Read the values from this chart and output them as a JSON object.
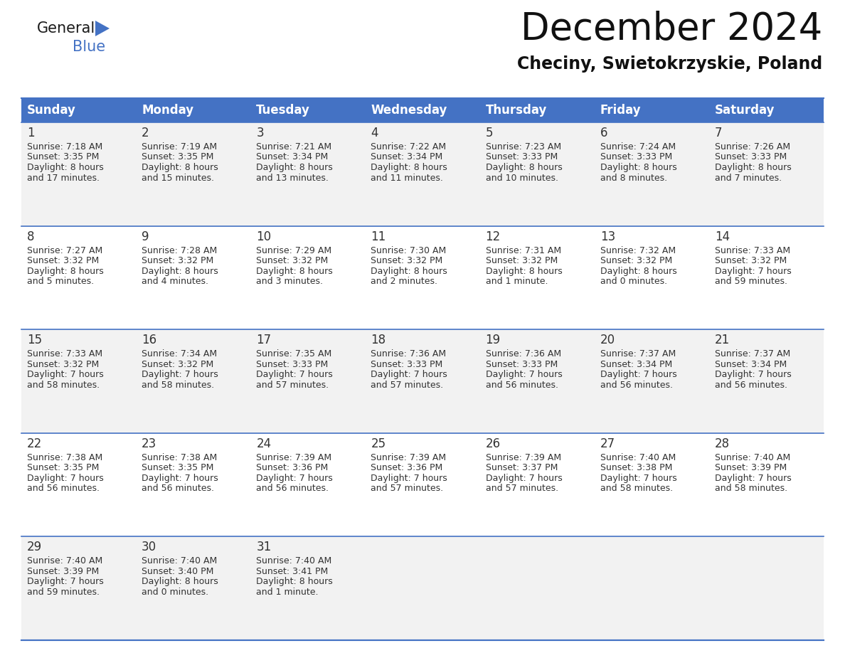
{
  "title": "December 2024",
  "subtitle": "Checiny, Swietokrzyskie, Poland",
  "days_of_week": [
    "Sunday",
    "Monday",
    "Tuesday",
    "Wednesday",
    "Thursday",
    "Friday",
    "Saturday"
  ],
  "header_bg": "#4472C4",
  "header_text": "#FFFFFF",
  "row_bg_even": "#F2F2F2",
  "row_bg_odd": "#FFFFFF",
  "day_num_color": "#333333",
  "text_color": "#333333",
  "line_color": "#4472C4",
  "calendar_data": [
    [
      {
        "day": 1,
        "sunrise": "7:18 AM",
        "sunset": "3:35 PM",
        "daylight": "8 hours and 17 minutes."
      },
      {
        "day": 2,
        "sunrise": "7:19 AM",
        "sunset": "3:35 PM",
        "daylight": "8 hours and 15 minutes."
      },
      {
        "day": 3,
        "sunrise": "7:21 AM",
        "sunset": "3:34 PM",
        "daylight": "8 hours and 13 minutes."
      },
      {
        "day": 4,
        "sunrise": "7:22 AM",
        "sunset": "3:34 PM",
        "daylight": "8 hours and 11 minutes."
      },
      {
        "day": 5,
        "sunrise": "7:23 AM",
        "sunset": "3:33 PM",
        "daylight": "8 hours and 10 minutes."
      },
      {
        "day": 6,
        "sunrise": "7:24 AM",
        "sunset": "3:33 PM",
        "daylight": "8 hours and 8 minutes."
      },
      {
        "day": 7,
        "sunrise": "7:26 AM",
        "sunset": "3:33 PM",
        "daylight": "8 hours and 7 minutes."
      }
    ],
    [
      {
        "day": 8,
        "sunrise": "7:27 AM",
        "sunset": "3:32 PM",
        "daylight": "8 hours and 5 minutes."
      },
      {
        "day": 9,
        "sunrise": "7:28 AM",
        "sunset": "3:32 PM",
        "daylight": "8 hours and 4 minutes."
      },
      {
        "day": 10,
        "sunrise": "7:29 AM",
        "sunset": "3:32 PM",
        "daylight": "8 hours and 3 minutes."
      },
      {
        "day": 11,
        "sunrise": "7:30 AM",
        "sunset": "3:32 PM",
        "daylight": "8 hours and 2 minutes."
      },
      {
        "day": 12,
        "sunrise": "7:31 AM",
        "sunset": "3:32 PM",
        "daylight": "8 hours and 1 minute."
      },
      {
        "day": 13,
        "sunrise": "7:32 AM",
        "sunset": "3:32 PM",
        "daylight": "8 hours and 0 minutes."
      },
      {
        "day": 14,
        "sunrise": "7:33 AM",
        "sunset": "3:32 PM",
        "daylight": "7 hours and 59 minutes."
      }
    ],
    [
      {
        "day": 15,
        "sunrise": "7:33 AM",
        "sunset": "3:32 PM",
        "daylight": "7 hours and 58 minutes."
      },
      {
        "day": 16,
        "sunrise": "7:34 AM",
        "sunset": "3:32 PM",
        "daylight": "7 hours and 58 minutes."
      },
      {
        "day": 17,
        "sunrise": "7:35 AM",
        "sunset": "3:33 PM",
        "daylight": "7 hours and 57 minutes."
      },
      {
        "day": 18,
        "sunrise": "7:36 AM",
        "sunset": "3:33 PM",
        "daylight": "7 hours and 57 minutes."
      },
      {
        "day": 19,
        "sunrise": "7:36 AM",
        "sunset": "3:33 PM",
        "daylight": "7 hours and 56 minutes."
      },
      {
        "day": 20,
        "sunrise": "7:37 AM",
        "sunset": "3:34 PM",
        "daylight": "7 hours and 56 minutes."
      },
      {
        "day": 21,
        "sunrise": "7:37 AM",
        "sunset": "3:34 PM",
        "daylight": "7 hours and 56 minutes."
      }
    ],
    [
      {
        "day": 22,
        "sunrise": "7:38 AM",
        "sunset": "3:35 PM",
        "daylight": "7 hours and 56 minutes."
      },
      {
        "day": 23,
        "sunrise": "7:38 AM",
        "sunset": "3:35 PM",
        "daylight": "7 hours and 56 minutes."
      },
      {
        "day": 24,
        "sunrise": "7:39 AM",
        "sunset": "3:36 PM",
        "daylight": "7 hours and 56 minutes."
      },
      {
        "day": 25,
        "sunrise": "7:39 AM",
        "sunset": "3:36 PM",
        "daylight": "7 hours and 57 minutes."
      },
      {
        "day": 26,
        "sunrise": "7:39 AM",
        "sunset": "3:37 PM",
        "daylight": "7 hours and 57 minutes."
      },
      {
        "day": 27,
        "sunrise": "7:40 AM",
        "sunset": "3:38 PM",
        "daylight": "7 hours and 58 minutes."
      },
      {
        "day": 28,
        "sunrise": "7:40 AM",
        "sunset": "3:39 PM",
        "daylight": "7 hours and 58 minutes."
      }
    ],
    [
      {
        "day": 29,
        "sunrise": "7:40 AM",
        "sunset": "3:39 PM",
        "daylight": "7 hours and 59 minutes."
      },
      {
        "day": 30,
        "sunrise": "7:40 AM",
        "sunset": "3:40 PM",
        "daylight": "8 hours and 0 minutes."
      },
      {
        "day": 31,
        "sunrise": "7:40 AM",
        "sunset": "3:41 PM",
        "daylight": "8 hours and 1 minute."
      },
      null,
      null,
      null,
      null
    ]
  ],
  "logo_text_general": "General",
  "logo_text_blue": "Blue",
  "title_fontsize": 38,
  "subtitle_fontsize": 17,
  "header_fontsize": 12,
  "day_num_fontsize": 12,
  "cell_fontsize": 9.0
}
